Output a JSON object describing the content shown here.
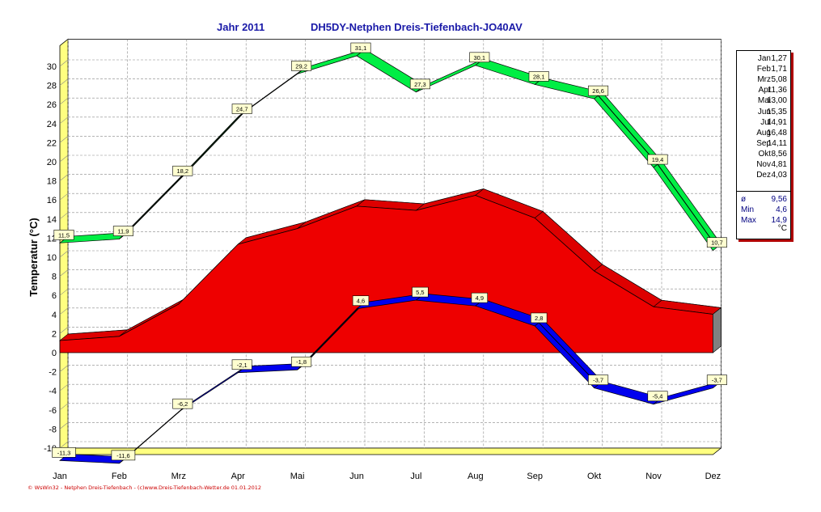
{
  "header": {
    "year_title": "Jahr  2011",
    "station_title": "DH5DY-Netphen Dreis-Tiefenbach-JO40AV"
  },
  "footer": {
    "credit": "© WsWin32 - Netphen Dreis-Tiefenbach - (c)www.Dreis-Tiefenbach-Wetter.de  01.01.2012"
  },
  "legend": {
    "monthly": [
      {
        "month": "Jan",
        "value": "1,27"
      },
      {
        "month": "Feb",
        "value": "1,71"
      },
      {
        "month": "Mrz",
        "value": "5,08"
      },
      {
        "month": "Apr",
        "value": "11,36"
      },
      {
        "month": "Mai",
        "value": "13,00"
      },
      {
        "month": "Jun",
        "value": "15,35"
      },
      {
        "month": "Jul",
        "value": "14,91"
      },
      {
        "month": "Aug",
        "value": "16,48"
      },
      {
        "month": "Sep",
        "value": "14,11"
      },
      {
        "month": "Okt",
        "value": "8,56"
      },
      {
        "month": "Nov",
        "value": "4,81"
      },
      {
        "month": "Dez",
        "value": "4,03"
      }
    ],
    "stats": [
      {
        "label": "ø",
        "value": "9,56"
      },
      {
        "label": "Min",
        "value": "4,6"
      },
      {
        "label": "Max",
        "value": "14,9"
      }
    ],
    "unit": "°C"
  },
  "colors": {
    "max_band": "#00ee44",
    "mean_area": "#ee0000",
    "min_band": "#0000ee",
    "wall": "#ffff80",
    "title": "#1a1aa8"
  },
  "chart_data": {
    "type": "area",
    "title": "Jahr  2011",
    "subtitle": "DH5DY-Netphen Dreis-Tiefenbach-JO40AV",
    "ylabel": "Temperatur  (°C)",
    "xlabel": "",
    "categories": [
      "Jan",
      "Feb",
      "Mrz",
      "Apr",
      "Mai",
      "Jun",
      "Jul",
      "Aug",
      "Sep",
      "Okt",
      "Nov",
      "Dez"
    ],
    "ylim": [
      -10,
      32
    ],
    "yticks": [
      -10,
      -8,
      -6,
      -4,
      -2,
      0,
      2,
      4,
      6,
      8,
      10,
      12,
      14,
      16,
      18,
      20,
      22,
      24,
      26,
      28,
      30
    ],
    "grid": true,
    "series": [
      {
        "values": [
          11.5,
          11.9,
          18.2,
          24.7,
          29.2,
          31.1,
          27.3,
          30.1,
          28.1,
          26.6,
          19.4,
          10.7
        ],
        "labels": [
          "11,5",
          "11,9",
          "18,2",
          "24,7",
          "29,2",
          "31,1",
          "27,3",
          "30,1",
          "28,1",
          "26,6",
          "19,4",
          "10,7"
        ]
      },
      {
        "values": [
          1.27,
          1.71,
          5.08,
          11.36,
          13.0,
          15.35,
          14.91,
          16.48,
          14.11,
          8.56,
          4.81,
          4.03
        ]
      },
      {
        "values": [
          -11.3,
          -11.6,
          -6.2,
          -2.1,
          -1.8,
          4.6,
          5.5,
          4.9,
          2.8,
          -3.7,
          -5.4,
          -3.7
        ],
        "labels": [
          "-11,3",
          "-11,6",
          "-6,2",
          "-2,1",
          "-1,8",
          "4,6",
          "5,5",
          "4,9",
          "2,8",
          "-3,7",
          "-5,4",
          "-3,7"
        ]
      }
    ]
  }
}
